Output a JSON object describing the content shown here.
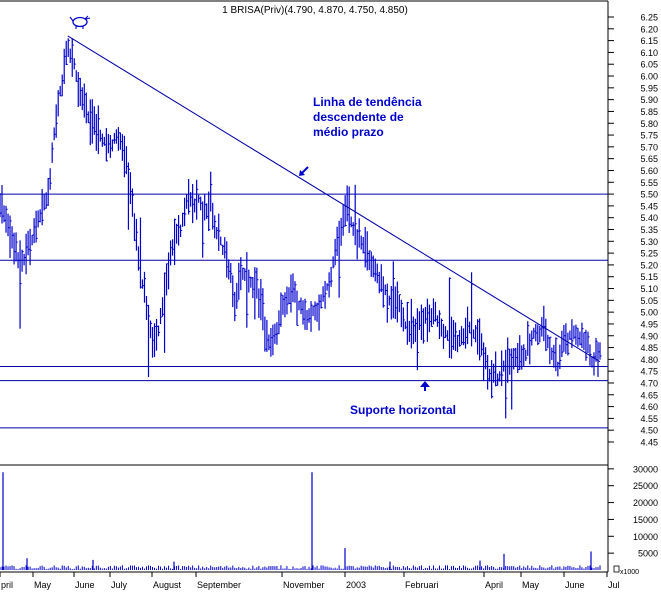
{
  "colors": {
    "background": "#ffffff",
    "border": "#000000",
    "price_bars": "#0000cc",
    "volume_bars": "#0000cc",
    "trend_lines": "#0000aa",
    "annotation_text": "#0000cc",
    "axis_text": "#000000"
  },
  "icon": "bull-logo-icon",
  "chart_data": [
    {
      "type": "line",
      "subtype": "hlc-price-bars",
      "title": "1 BRISA(Priv)(4.790, 4.870, 4.750, 4.850)",
      "grid": false,
      "legend": "none",
      "price_axis": {
        "side": "right",
        "ylim": [
          4.45,
          6.25
        ],
        "ticks": [
          "6.25",
          "6.20",
          "6.15",
          "6.10",
          "6.05",
          "6.00",
          "5.95",
          "5.90",
          "5.85",
          "5.80",
          "5.75",
          "5.70",
          "5.65",
          "5.60",
          "5.55",
          "5.50",
          "5.45",
          "5.40",
          "5.35",
          "5.30",
          "5.25",
          "5.20",
          "5.15",
          "5.10",
          "5.05",
          "5.00",
          "4.95",
          "4.90",
          "4.85",
          "4.80",
          "4.75",
          "4.70",
          "4.65",
          "4.60",
          "4.55",
          "4.50",
          "4.45"
        ]
      },
      "x_axis": {
        "labels": [
          "pril",
          "May",
          "June",
          "July",
          "August",
          "September",
          "November",
          "2003",
          "Februari",
          "April",
          "May",
          "June",
          "Jul"
        ]
      },
      "price_anchors": [
        {
          "pos": 0.0,
          "value": 5.45
        },
        {
          "pos": 0.02,
          "value": 5.3
        },
        {
          "pos": 0.04,
          "value": 5.22
        },
        {
          "pos": 0.06,
          "value": 5.35
        },
        {
          "pos": 0.08,
          "value": 5.5
        },
        {
          "pos": 0.09,
          "value": 5.75
        },
        {
          "pos": 0.1,
          "value": 5.95
        },
        {
          "pos": 0.115,
          "value": 6.12
        },
        {
          "pos": 0.13,
          "value": 5.95
        },
        {
          "pos": 0.16,
          "value": 5.78
        },
        {
          "pos": 0.19,
          "value": 5.75
        },
        {
          "pos": 0.215,
          "value": 5.6
        },
        {
          "pos": 0.23,
          "value": 5.25
        },
        {
          "pos": 0.245,
          "value": 5.0
        },
        {
          "pos": 0.26,
          "value": 4.88
        },
        {
          "pos": 0.275,
          "value": 5.1
        },
        {
          "pos": 0.295,
          "value": 5.3
        },
        {
          "pos": 0.32,
          "value": 5.48
        },
        {
          "pos": 0.35,
          "value": 5.42
        },
        {
          "pos": 0.375,
          "value": 5.3
        },
        {
          "pos": 0.39,
          "value": 5.05
        },
        {
          "pos": 0.41,
          "value": 5.15
        },
        {
          "pos": 0.43,
          "value": 5.1
        },
        {
          "pos": 0.45,
          "value": 4.85
        },
        {
          "pos": 0.47,
          "value": 5.05
        },
        {
          "pos": 0.49,
          "value": 5.05
        },
        {
          "pos": 0.51,
          "value": 4.95
        },
        {
          "pos": 0.53,
          "value": 5.0
        },
        {
          "pos": 0.55,
          "value": 5.2
        },
        {
          "pos": 0.565,
          "value": 5.4
        },
        {
          "pos": 0.58,
          "value": 5.42
        },
        {
          "pos": 0.6,
          "value": 5.35
        },
        {
          "pos": 0.625,
          "value": 5.2
        },
        {
          "pos": 0.65,
          "value": 5.05
        },
        {
          "pos": 0.67,
          "value": 4.97
        },
        {
          "pos": 0.69,
          "value": 4.92
        },
        {
          "pos": 0.71,
          "value": 4.98
        },
        {
          "pos": 0.735,
          "value": 4.95
        },
        {
          "pos": 0.76,
          "value": 4.93
        },
        {
          "pos": 0.78,
          "value": 4.92
        },
        {
          "pos": 0.8,
          "value": 4.9
        },
        {
          "pos": 0.815,
          "value": 4.75
        },
        {
          "pos": 0.83,
          "value": 4.72
        },
        {
          "pos": 0.845,
          "value": 4.85
        },
        {
          "pos": 0.86,
          "value": 4.8
        },
        {
          "pos": 0.875,
          "value": 4.82
        },
        {
          "pos": 0.89,
          "value": 4.9
        },
        {
          "pos": 0.91,
          "value": 4.88
        },
        {
          "pos": 0.93,
          "value": 4.8
        },
        {
          "pos": 0.945,
          "value": 4.92
        },
        {
          "pos": 0.96,
          "value": 4.88
        },
        {
          "pos": 0.975,
          "value": 4.82
        },
        {
          "pos": 1.0,
          "value": 4.82
        }
      ],
      "trend_line": {
        "start": {
          "pos": 0.113,
          "value": 6.17
        },
        "end": {
          "pos": 1.0,
          "value": 4.79
        }
      },
      "horizontal_levels": [
        5.5,
        5.22,
        4.77,
        4.71,
        4.51
      ],
      "annotations": [
        "Linha de tendência",
        "descendente de",
        "médio prazo",
        "Suporte horizontal"
      ]
    },
    {
      "type": "bar",
      "subtype": "volume",
      "ylim": [
        0,
        35000
      ],
      "ticks": [
        "30000",
        "25000",
        "20000",
        "15000",
        "10000",
        "5000"
      ],
      "unit_label": "x1000",
      "spikes": [
        {
          "pos": 0.005,
          "value": 29000
        },
        {
          "pos": 0.045,
          "value": 3500
        },
        {
          "pos": 0.155,
          "value": 3000
        },
        {
          "pos": 0.29,
          "value": 2500
        },
        {
          "pos": 0.52,
          "value": 29000
        },
        {
          "pos": 0.575,
          "value": 6500
        },
        {
          "pos": 0.65,
          "value": 2500
        },
        {
          "pos": 0.8,
          "value": 2800
        },
        {
          "pos": 0.84,
          "value": 4800
        },
        {
          "pos": 0.985,
          "value": 5500
        }
      ]
    }
  ]
}
